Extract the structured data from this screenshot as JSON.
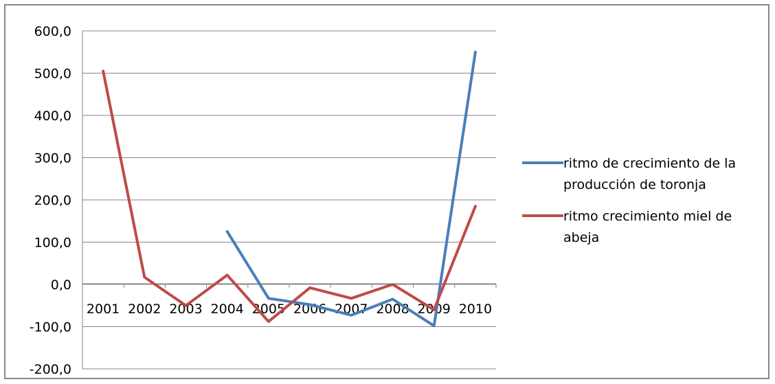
{
  "chart_data": {
    "type": "line",
    "title": "",
    "xlabel": "",
    "ylabel": "",
    "categories": [
      "2001",
      "2002",
      "2003",
      "2004",
      "2005",
      "2006",
      "2007",
      "2008",
      "2009",
      "2010"
    ],
    "ylim": [
      -200,
      600
    ],
    "ytick_step": 100,
    "ytick_labels": [
      "-200,0",
      "-100,0",
      "0,0",
      "100,0",
      "200,0",
      "300,0",
      "400,0",
      "500,0",
      "600,0"
    ],
    "grid": true,
    "legend_position": "right",
    "series": [
      {
        "name": "ritmo de crecimiento de la producción de toronja",
        "legend_lines": [
          "ritmo de crecimiento de la",
          "producción de toronja"
        ],
        "color": "#4A7EBB",
        "values": [
          null,
          null,
          null,
          125,
          -33,
          -48,
          -73,
          -35,
          -98,
          550
        ]
      },
      {
        "name": "ritmo crecimiento miel de abeja",
        "legend_lines": [
          "ritmo crecimiento miel de",
          "abeja"
        ],
        "color": "#BE4B48",
        "values": [
          505,
          17,
          -50,
          22,
          -88,
          -8,
          -33,
          0,
          -60,
          185
        ]
      }
    ]
  }
}
